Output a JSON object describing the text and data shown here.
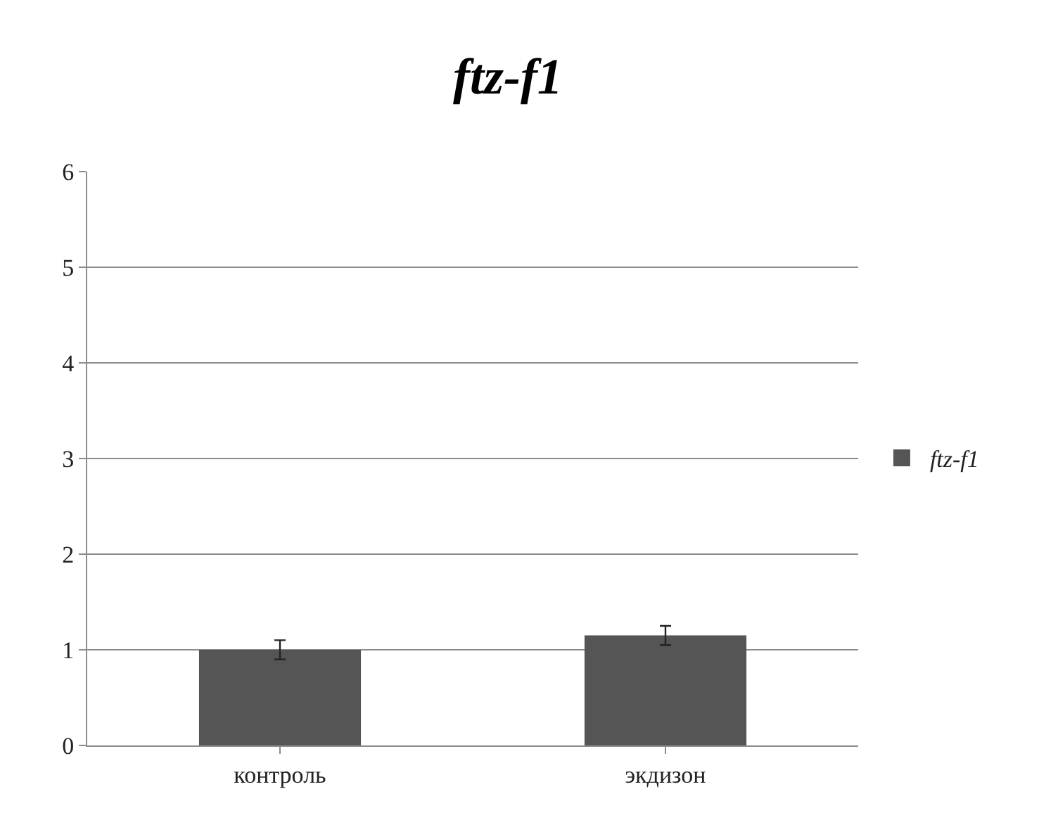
{
  "chart_data": {
    "type": "bar",
    "title": "ftz-f1",
    "categories": [
      "контроль",
      "экдизон"
    ],
    "series": [
      {
        "name": "ftz-f1",
        "color": "#555555",
        "values": [
          1.0,
          1.15
        ],
        "errors": [
          0.1,
          0.1
        ]
      }
    ],
    "ylim": [
      0,
      6
    ],
    "yticks": [
      0,
      1,
      2,
      3,
      4,
      5,
      6
    ],
    "grid": "y",
    "legend": "right"
  }
}
